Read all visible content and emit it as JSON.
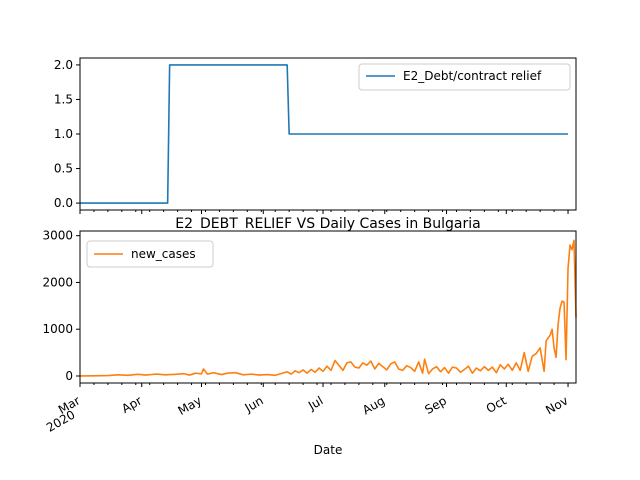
{
  "chart_data": [
    {
      "type": "line",
      "title": "",
      "xlabel": "",
      "ylabel": "",
      "ylim": [
        -0.1,
        2.1
      ],
      "yticks": [
        "0.0",
        "0.5",
        "1.0",
        "1.5",
        "2.0"
      ],
      "grid": false,
      "legend": "top-right",
      "series": [
        {
          "name": "E2_Debt/contract relief",
          "color": "#1f77b4",
          "points": [
            [
              "2020-03-01",
              0
            ],
            [
              "2020-04-14",
              0
            ],
            [
              "2020-04-15",
              2
            ],
            [
              "2020-06-13",
              2
            ],
            [
              "2020-06-14",
              1
            ],
            [
              "2020-11-01",
              1
            ]
          ]
        }
      ]
    },
    {
      "type": "line",
      "title": "E2_DEBT_RELIEF VS Daily Cases in Bulgaria",
      "xlabel": "Date",
      "ylabel": "",
      "ylim": [
        -150,
        3100
      ],
      "yticks": [
        "0",
        "1000",
        "2000",
        "3000"
      ],
      "grid": false,
      "legend": "top-left",
      "xticks": [
        {
          "date": "2020-03-01",
          "label": "Mar",
          "sublabel": "2020"
        },
        {
          "date": "2020-04-01",
          "label": "Apr"
        },
        {
          "date": "2020-05-01",
          "label": "May"
        },
        {
          "date": "2020-06-01",
          "label": "Jun"
        },
        {
          "date": "2020-07-01",
          "label": "Jul"
        },
        {
          "date": "2020-08-01",
          "label": "Aug"
        },
        {
          "date": "2020-09-01",
          "label": "Sep"
        },
        {
          "date": "2020-10-01",
          "label": "Oct"
        },
        {
          "date": "2020-11-01",
          "label": "Nov"
        }
      ],
      "series": [
        {
          "name": "new_cases",
          "color": "#ff7f0e",
          "points": [
            [
              "2020-03-01",
              0
            ],
            [
              "2020-03-08",
              4
            ],
            [
              "2020-03-15",
              10
            ],
            [
              "2020-03-20",
              25
            ],
            [
              "2020-03-25",
              15
            ],
            [
              "2020-03-30",
              35
            ],
            [
              "2020-04-03",
              20
            ],
            [
              "2020-04-08",
              40
            ],
            [
              "2020-04-13",
              25
            ],
            [
              "2020-04-18",
              35
            ],
            [
              "2020-04-22",
              50
            ],
            [
              "2020-04-25",
              20
            ],
            [
              "2020-04-28",
              60
            ],
            [
              "2020-05-01",
              45
            ],
            [
              "2020-05-02",
              150
            ],
            [
              "2020-05-04",
              40
            ],
            [
              "2020-05-07",
              70
            ],
            [
              "2020-05-11",
              30
            ],
            [
              "2020-05-14",
              60
            ],
            [
              "2020-05-18",
              70
            ],
            [
              "2020-05-22",
              25
            ],
            [
              "2020-05-26",
              40
            ],
            [
              "2020-05-30",
              20
            ],
            [
              "2020-06-03",
              30
            ],
            [
              "2020-06-07",
              15
            ],
            [
              "2020-06-10",
              50
            ],
            [
              "2020-06-13",
              90
            ],
            [
              "2020-06-15",
              40
            ],
            [
              "2020-06-17",
              110
            ],
            [
              "2020-06-19",
              70
            ],
            [
              "2020-06-21",
              130
            ],
            [
              "2020-06-23",
              60
            ],
            [
              "2020-06-25",
              140
            ],
            [
              "2020-06-27",
              80
            ],
            [
              "2020-06-29",
              170
            ],
            [
              "2020-07-01",
              100
            ],
            [
              "2020-07-03",
              210
            ],
            [
              "2020-07-05",
              120
            ],
            [
              "2020-07-07",
              330
            ],
            [
              "2020-07-09",
              230
            ],
            [
              "2020-07-11",
              120
            ],
            [
              "2020-07-13",
              280
            ],
            [
              "2020-07-15",
              300
            ],
            [
              "2020-07-17",
              190
            ],
            [
              "2020-07-19",
              170
            ],
            [
              "2020-07-21",
              280
            ],
            [
              "2020-07-23",
              230
            ],
            [
              "2020-07-25",
              320
            ],
            [
              "2020-07-27",
              150
            ],
            [
              "2020-07-29",
              270
            ],
            [
              "2020-07-31",
              200
            ],
            [
              "2020-08-02",
              130
            ],
            [
              "2020-08-04",
              260
            ],
            [
              "2020-08-06",
              300
            ],
            [
              "2020-08-08",
              150
            ],
            [
              "2020-08-10",
              120
            ],
            [
              "2020-08-12",
              220
            ],
            [
              "2020-08-14",
              180
            ],
            [
              "2020-08-16",
              100
            ],
            [
              "2020-08-18",
              300
            ],
            [
              "2020-08-20",
              60
            ],
            [
              "2020-08-21",
              360
            ],
            [
              "2020-08-23",
              50
            ],
            [
              "2020-08-25",
              150
            ],
            [
              "2020-08-27",
              200
            ],
            [
              "2020-08-29",
              90
            ],
            [
              "2020-08-31",
              180
            ],
            [
              "2020-09-02",
              60
            ],
            [
              "2020-09-04",
              190
            ],
            [
              "2020-09-06",
              170
            ],
            [
              "2020-09-08",
              80
            ],
            [
              "2020-09-10",
              140
            ],
            [
              "2020-09-12",
              210
            ],
            [
              "2020-09-14",
              60
            ],
            [
              "2020-09-16",
              170
            ],
            [
              "2020-09-18",
              110
            ],
            [
              "2020-09-20",
              200
            ],
            [
              "2020-09-22",
              120
            ],
            [
              "2020-09-24",
              190
            ],
            [
              "2020-09-26",
              70
            ],
            [
              "2020-09-28",
              240
            ],
            [
              "2020-09-30",
              150
            ],
            [
              "2020-10-02",
              250
            ],
            [
              "2020-10-04",
              120
            ],
            [
              "2020-10-06",
              280
            ],
            [
              "2020-10-08",
              120
            ],
            [
              "2020-10-10",
              500
            ],
            [
              "2020-10-12",
              100
            ],
            [
              "2020-10-14",
              420
            ],
            [
              "2020-10-16",
              480
            ],
            [
              "2020-10-18",
              600
            ],
            [
              "2020-10-20",
              100
            ],
            [
              "2020-10-21",
              750
            ],
            [
              "2020-10-23",
              870
            ],
            [
              "2020-10-24",
              1000
            ],
            [
              "2020-10-25",
              600
            ],
            [
              "2020-10-26",
              400
            ],
            [
              "2020-10-27",
              1100
            ],
            [
              "2020-10-28",
              1450
            ],
            [
              "2020-10-29",
              1600
            ],
            [
              "2020-10-30",
              1580
            ],
            [
              "2020-10-31",
              350
            ],
            [
              "2020-11-01",
              2300
            ],
            [
              "2020-11-02",
              2800
            ],
            [
              "2020-11-03",
              2700
            ],
            [
              "2020-11-04",
              2900
            ],
            [
              "2020-11-05",
              1250
            ]
          ]
        }
      ]
    }
  ]
}
